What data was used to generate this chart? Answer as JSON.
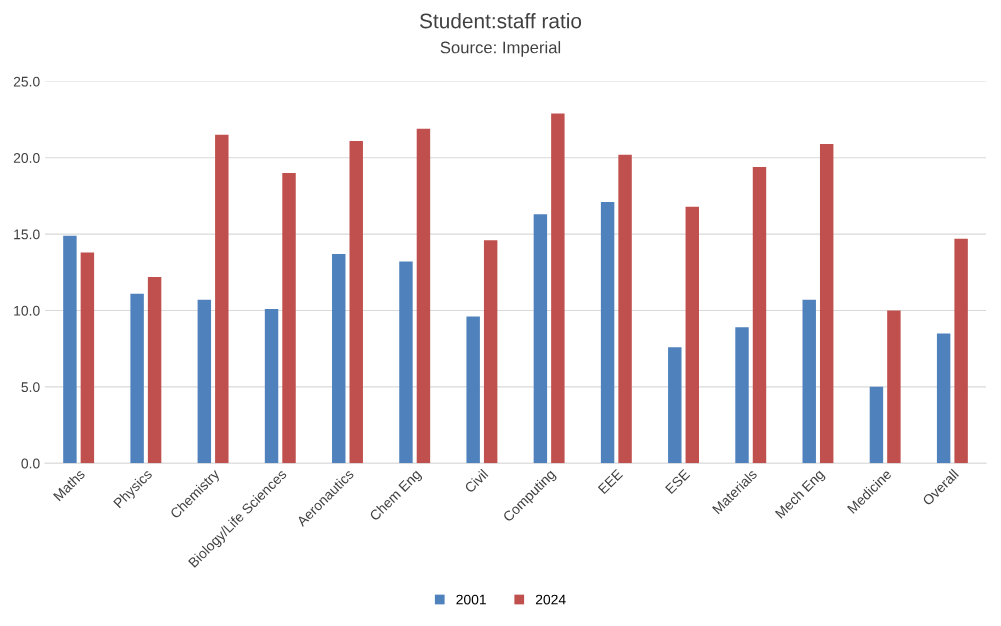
{
  "chart_data": {
    "type": "bar",
    "title": "Student:staff ratio",
    "subtitle": "Source: Imperial",
    "categories": [
      "Maths",
      "Physics",
      "Chemistry",
      "Biology/Life Sciences",
      "Aeronautics",
      "Chem Eng",
      "Civil",
      "Computing",
      "EEE",
      "ESE",
      "Materials",
      "Mech Eng",
      "Medicine",
      "Overall"
    ],
    "series": [
      {
        "name": "2001",
        "color": "#4f81bd",
        "values": [
          14.9,
          11.1,
          10.7,
          10.1,
          13.7,
          13.2,
          9.6,
          16.3,
          17.1,
          7.6,
          8.9,
          10.7,
          5.0,
          8.5
        ]
      },
      {
        "name": "2024",
        "color": "#c0504d",
        "values": [
          13.8,
          12.2,
          21.5,
          19.0,
          21.1,
          21.9,
          14.6,
          22.9,
          20.2,
          16.8,
          19.4,
          20.9,
          10.0,
          14.7
        ]
      }
    ],
    "ylim": [
      0,
      25
    ],
    "yticks": [
      {
        "value": 0,
        "label": "0.0"
      },
      {
        "value": 5,
        "label": "5.0"
      },
      {
        "value": 10,
        "label": "10.0"
      },
      {
        "value": 15,
        "label": "15.0"
      },
      {
        "value": 20,
        "label": "20.0"
      },
      {
        "value": 25,
        "label": "25.0"
      }
    ],
    "grid": "y",
    "legend": "bottom"
  }
}
